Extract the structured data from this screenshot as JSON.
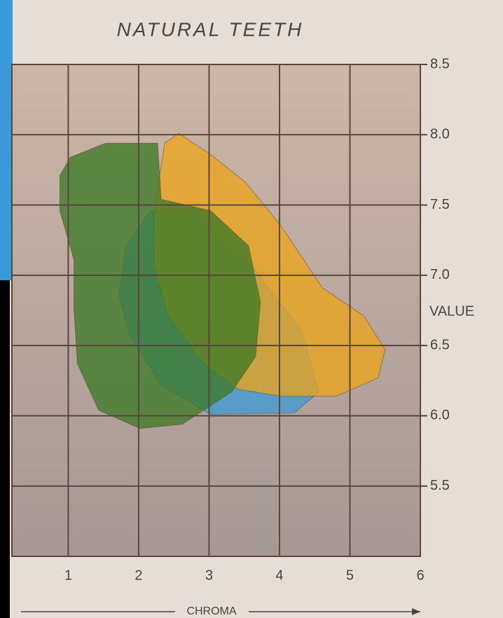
{
  "chart_data": {
    "type": "region",
    "title": "NATURAL TEETH",
    "ylabel": "VALUE",
    "xlabel": "CHROMA",
    "xlim": [
      0.2,
      6
    ],
    "ylim": [
      5,
      8.5
    ],
    "xticks": [
      1,
      2,
      3,
      4,
      5,
      6
    ],
    "yticks": [
      {
        "value": 5.5,
        "label": "5.5"
      },
      {
        "value": 6,
        "label": "6.0"
      },
      {
        "value": 6.5,
        "label": "6.5"
      },
      {
        "value": 7,
        "label": "7.0"
      },
      {
        "value": 7.5,
        "label": "7.5"
      },
      {
        "value": 8,
        "label": "8.0"
      },
      {
        "value": 8.5,
        "label": "8.5"
      }
    ],
    "grid": true,
    "series": [
      {
        "color": "#3f9ad6",
        "x": [
          2.17,
          2.82,
          3.62,
          4.31,
          4.56,
          4.21,
          3.02,
          2.32,
          1.87,
          1.72,
          1.82
        ],
        "y": [
          7.46,
          7.46,
          7.06,
          6.61,
          6.17,
          6.02,
          6.01,
          6.22,
          6.57,
          6.86,
          7.21
        ]
      },
      {
        "color": "#eaa41c",
        "x": [
          2.37,
          2.57,
          3.02,
          3.52,
          4.01,
          4.61,
          5.2,
          5.5,
          5.4,
          4.81,
          4.01,
          3.41,
          2.92,
          2.42,
          2.22,
          2.22
        ],
        "y": [
          7.94,
          8.01,
          7.86,
          7.66,
          7.36,
          6.91,
          6.71,
          6.47,
          6.27,
          6.14,
          6.14,
          6.19,
          6.37,
          6.71,
          7.06,
          7.46
        ]
      },
      {
        "color": "#3d7a26",
        "x": [
          1.03,
          1.53,
          2.27,
          2.32,
          3.02,
          3.56,
          3.73,
          3.66,
          3.32,
          2.62,
          2.02,
          1.43,
          1.13,
          1.08,
          1.08,
          0.88,
          0.88
        ],
        "y": [
          7.84,
          7.94,
          7.94,
          7.54,
          7.46,
          7.21,
          6.81,
          6.42,
          6.17,
          5.94,
          5.91,
          6.04,
          6.37,
          6.76,
          7.11,
          7.46,
          7.71
        ]
      }
    ]
  }
}
